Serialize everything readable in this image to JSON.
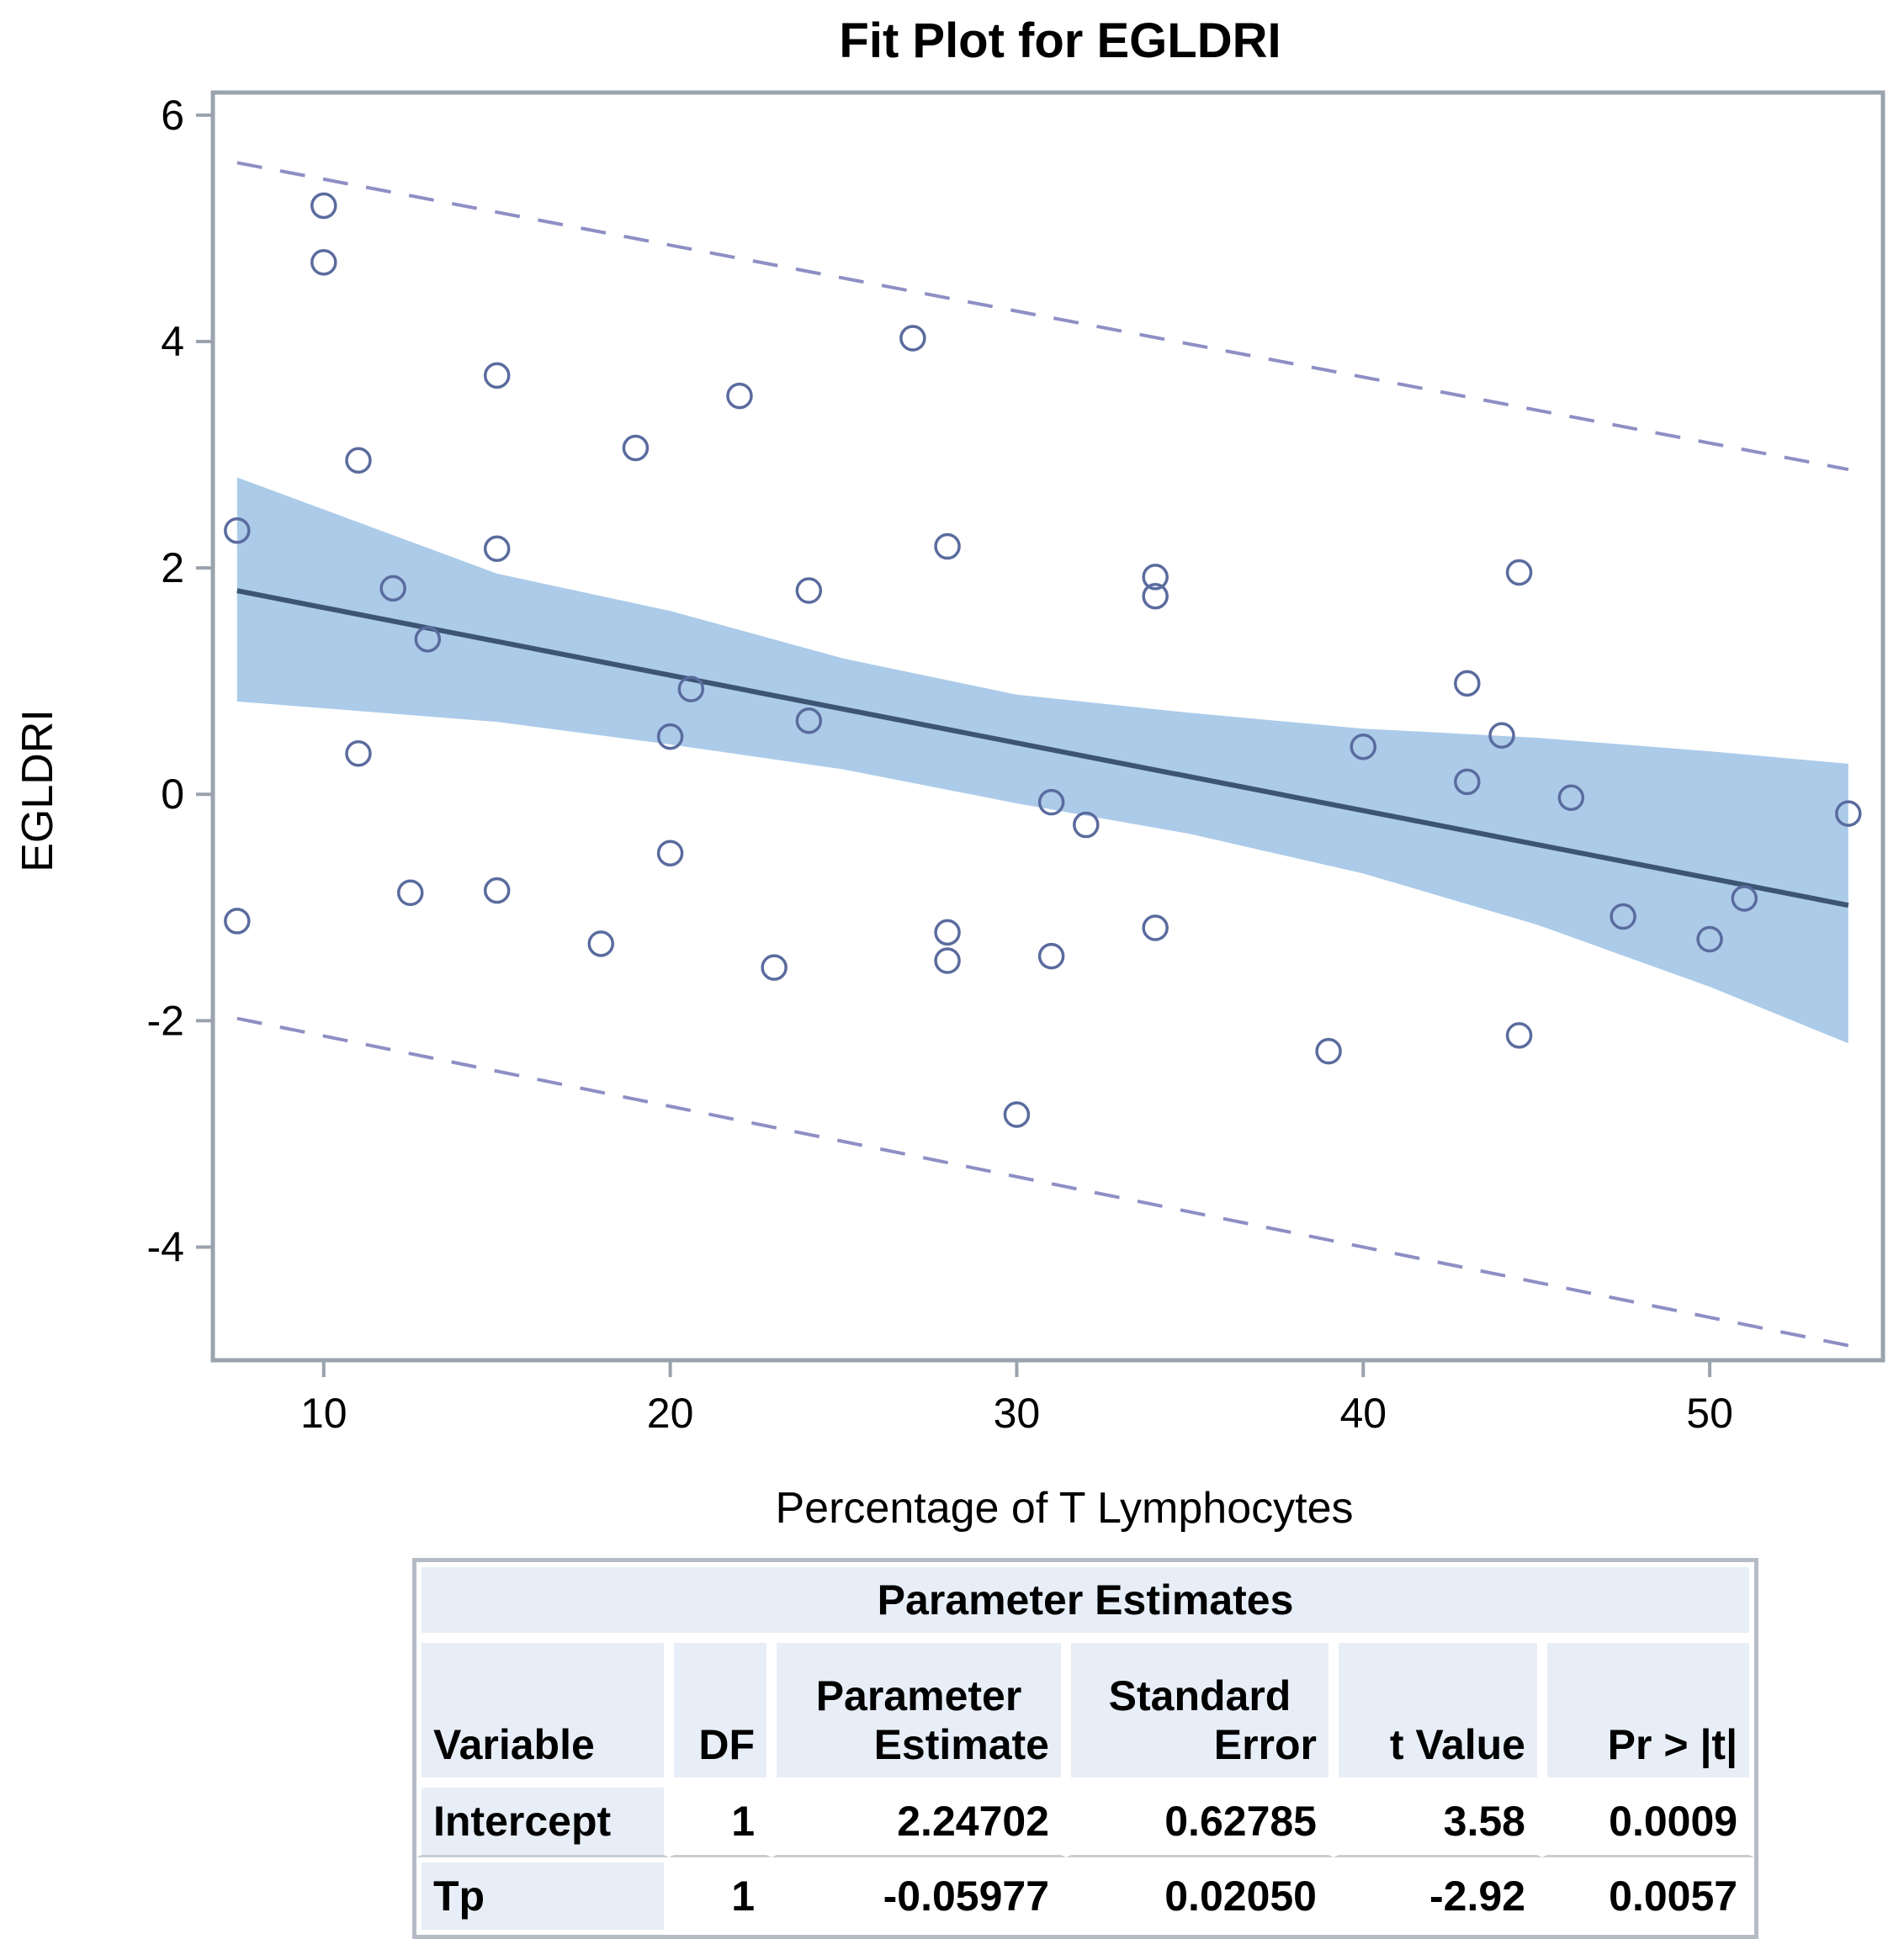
{
  "chart_data": {
    "type": "scatter",
    "title": "Fit Plot for EGLDRI",
    "xlabel": "Percentage of T Lymphocytes",
    "ylabel": "EGLDRI",
    "xlim": [
      6.8,
      55
    ],
    "ylim": [
      -5,
      6.2
    ],
    "xticks": [
      10,
      20,
      30,
      40,
      50
    ],
    "yticks": [
      -4,
      -2,
      0,
      2,
      4,
      6
    ],
    "grid": false,
    "points": [
      {
        "x": 7.5,
        "y": 2.33
      },
      {
        "x": 7.5,
        "y": -1.12
      },
      {
        "x": 10,
        "y": 5.2
      },
      {
        "x": 10,
        "y": 4.7
      },
      {
        "x": 11,
        "y": 2.95
      },
      {
        "x": 11,
        "y": 0.36
      },
      {
        "x": 12,
        "y": 1.82
      },
      {
        "x": 12.5,
        "y": -0.87
      },
      {
        "x": 13,
        "y": 1.37
      },
      {
        "x": 15,
        "y": 3.7
      },
      {
        "x": 15,
        "y": 2.17
      },
      {
        "x": 15,
        "y": -0.85
      },
      {
        "x": 18,
        "y": -1.32
      },
      {
        "x": 19,
        "y": 3.06
      },
      {
        "x": 20,
        "y": 0.51
      },
      {
        "x": 20,
        "y": -0.52
      },
      {
        "x": 20.6,
        "y": 0.93
      },
      {
        "x": 22,
        "y": 3.52
      },
      {
        "x": 23,
        "y": -1.53
      },
      {
        "x": 24,
        "y": 1.8
      },
      {
        "x": 24,
        "y": 0.65
      },
      {
        "x": 27,
        "y": 4.03
      },
      {
        "x": 28,
        "y": 2.19
      },
      {
        "x": 28,
        "y": -1.22
      },
      {
        "x": 28,
        "y": -1.47
      },
      {
        "x": 30,
        "y": -2.83
      },
      {
        "x": 31,
        "y": -0.07
      },
      {
        "x": 31,
        "y": -1.43
      },
      {
        "x": 32,
        "y": -0.27
      },
      {
        "x": 34,
        "y": 1.92
      },
      {
        "x": 34,
        "y": 1.75
      },
      {
        "x": 34,
        "y": -1.18
      },
      {
        "x": 39,
        "y": -2.27
      },
      {
        "x": 40,
        "y": 0.42
      },
      {
        "x": 43,
        "y": 0.98
      },
      {
        "x": 43,
        "y": 0.11
      },
      {
        "x": 44,
        "y": 0.52
      },
      {
        "x": 44.5,
        "y": 1.96
      },
      {
        "x": 44.5,
        "y": -2.13
      },
      {
        "x": 46,
        "y": -0.03
      },
      {
        "x": 47.5,
        "y": -1.08
      },
      {
        "x": 50,
        "y": -1.28
      },
      {
        "x": 51,
        "y": -0.92
      },
      {
        "x": 54,
        "y": -0.17
      }
    ],
    "fit": {
      "intercept": 2.24702,
      "slope": -0.05977,
      "x_range": [
        7.5,
        54
      ]
    },
    "confidence_band": {
      "x": [
        7.5,
        15,
        20,
        25,
        30,
        35,
        40,
        45,
        50,
        54
      ],
      "upper": [
        2.8,
        1.95,
        1.62,
        1.2,
        0.88,
        0.72,
        0.58,
        0.5,
        0.38,
        0.27
      ],
      "lower": [
        0.82,
        0.64,
        0.44,
        0.22,
        -0.08,
        -0.35,
        -0.7,
        -1.15,
        -1.7,
        -2.2
      ]
    },
    "prediction_band": {
      "x": [
        7.5,
        54
      ],
      "upper": [
        5.58,
        2.87
      ],
      "lower": [
        -1.98,
        -4.87
      ]
    },
    "colors": {
      "points": "#5a6b9e",
      "fit_line": "#3d5574",
      "confidence_band": "#abcbe9",
      "prediction_band": "#8d8fc4",
      "frame": "#9aa3ad"
    }
  },
  "table": {
    "caption": "Parameter Estimates",
    "headers": {
      "variable": "Variable",
      "df": "DF",
      "estimate_1": "Parameter",
      "estimate_2": "Estimate",
      "stderr_1": "Standard",
      "stderr_2": "Error",
      "tvalue": "t Value",
      "pvalue": "Pr > |t|"
    },
    "rows": [
      {
        "variable": "Intercept",
        "df": "1",
        "estimate": "2.24702",
        "stderr": "0.62785",
        "tvalue": "3.58",
        "pvalue": "0.0009"
      },
      {
        "variable": "Tp",
        "df": "1",
        "estimate": "-0.05977",
        "stderr": "0.02050",
        "tvalue": "-2.92",
        "pvalue": "0.0057"
      }
    ]
  }
}
